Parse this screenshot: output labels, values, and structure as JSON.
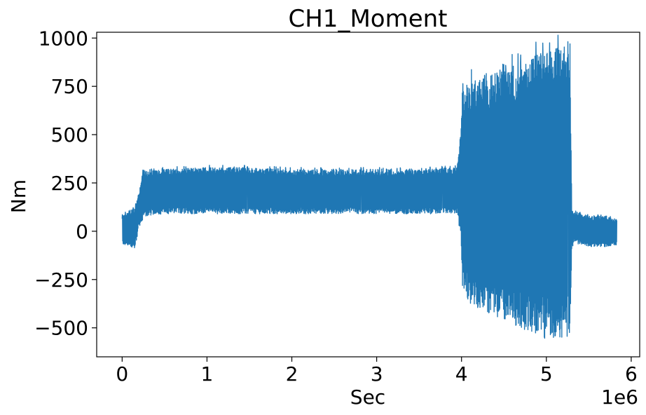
{
  "chart_data": {
    "type": "line",
    "title": "CH1_Moment",
    "xlabel": "Sec",
    "ylabel": "Nm",
    "x_offset_label": "1e6",
    "xlim": [
      -300000,
      6100000
    ],
    "ylim": [
      -650,
      1030
    ],
    "grid": false,
    "legend": "none",
    "series_color": "#1f77b4",
    "x_ticks": [
      0,
      1000000,
      2000000,
      3000000,
      4000000,
      5000000,
      6000000
    ],
    "x_tick_labels": [
      "0",
      "1",
      "2",
      "3",
      "4",
      "5",
      "6"
    ],
    "y_ticks": [
      -500,
      -250,
      0,
      250,
      500,
      750,
      1000
    ],
    "y_tick_labels": [
      "−500",
      "−250",
      "0",
      "250",
      "500",
      "750",
      "1000"
    ],
    "series": [
      {
        "envelope": {
          "x": [
            0,
            50000,
            150000,
            200000,
            250000,
            300000,
            500000,
            1000000,
            1500000,
            2000000,
            2500000,
            3000000,
            3500000,
            3950000,
            4000000,
            4010000,
            4100000,
            4500000,
            4800000,
            5000000,
            5200000,
            5280000,
            5300000,
            5320000,
            5500000,
            5700000,
            5830000
          ],
          "upper": [
            80,
            100,
            120,
            200,
            320,
            310,
            320,
            330,
            330,
            320,
            320,
            320,
            320,
            330,
            600,
            760,
            780,
            830,
            900,
            940,
            950,
            900,
            120,
            100,
            80,
            80,
            60
          ],
          "lower": [
            -70,
            -75,
            -90,
            20,
            60,
            80,
            90,
            90,
            90,
            90,
            90,
            90,
            90,
            90,
            -100,
            -300,
            -380,
            -460,
            -520,
            -560,
            -560,
            -540,
            -100,
            -60,
            -80,
            -80,
            -70
          ]
        }
      }
    ]
  }
}
